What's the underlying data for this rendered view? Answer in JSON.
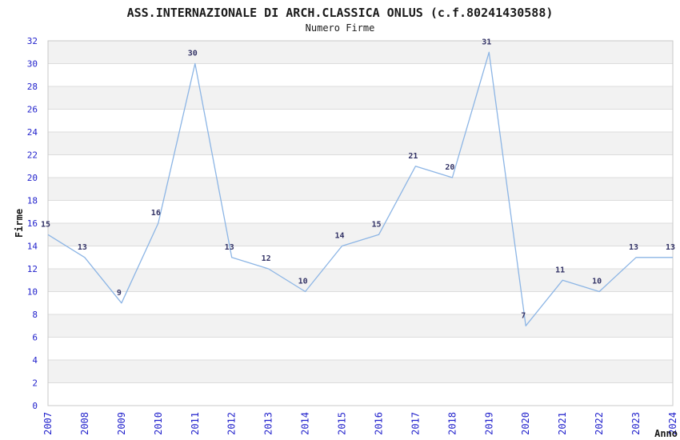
{
  "header": {
    "title": "ASS.INTERNAZIONALE DI ARCH.CLASSICA ONLUS (c.f.80241430588)",
    "subtitle": "Numero Firme"
  },
  "chart_data": {
    "type": "line",
    "title": "ASS.INTERNAZIONALE DI ARCH.CLASSICA ONLUS (c.f.80241430588)",
    "subtitle": "Numero Firme",
    "xlabel": "Anno",
    "ylabel": "Firme",
    "categories": [
      "2007",
      "2008",
      "2009",
      "2010",
      "2011",
      "2012",
      "2013",
      "2014",
      "2015",
      "2016",
      "2017",
      "2018",
      "2019",
      "2020",
      "2021",
      "2022",
      "2023",
      "2024"
    ],
    "series": [
      {
        "name": "Numero Firme",
        "values": [
          15,
          13,
          9,
          16,
          30,
          13,
          12,
          10,
          14,
          15,
          21,
          20,
          31,
          7,
          11,
          10,
          13,
          13
        ]
      }
    ],
    "ylim": [
      0,
      32
    ],
    "ytick_step": 2,
    "grid": true,
    "alternating_bands": true,
    "legend_position": "none",
    "point_labels": true,
    "colors": {
      "line": "#8cb5e5",
      "tick_label": "#2222cc",
      "point_label": "#333366",
      "band": "#f2f2f2",
      "gridline": "#dcdcdc",
      "plot_border": "#c8c8c8",
      "axis_title": "#1a1a1a",
      "background": "#ffffff"
    }
  }
}
